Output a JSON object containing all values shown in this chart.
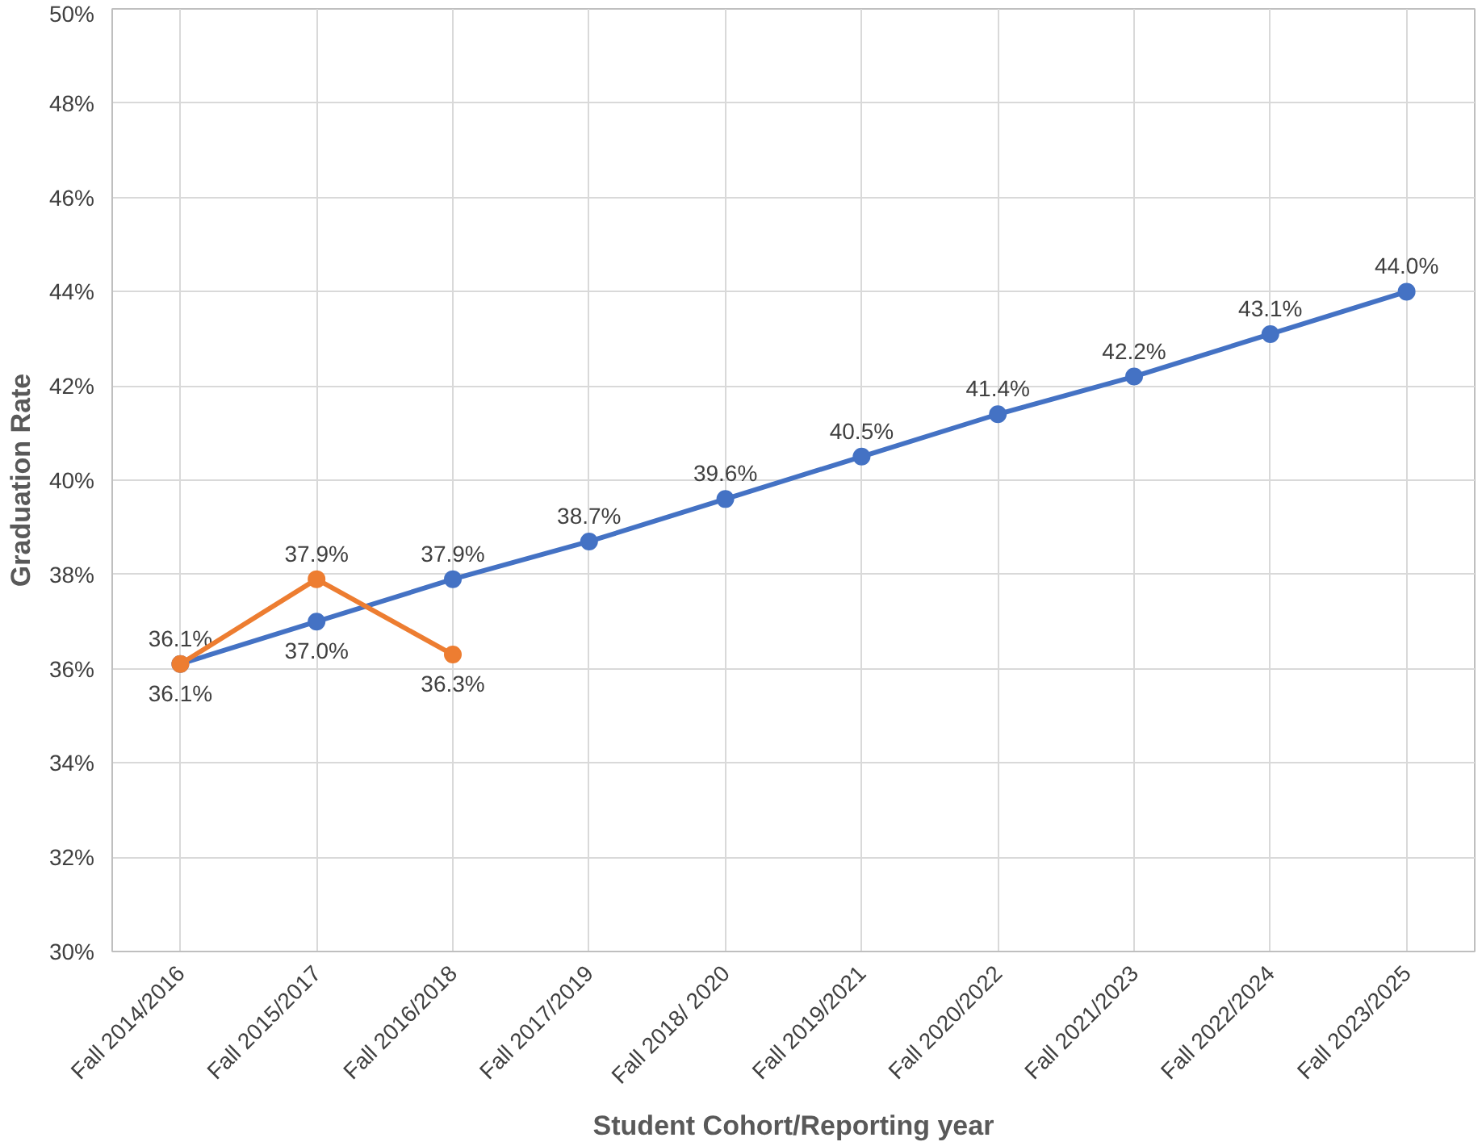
{
  "chart_data": {
    "type": "line",
    "xlabel": "Student Cohort/Reporting year",
    "ylabel": "Graduation Rate",
    "categories": [
      "Fall 2014/2016",
      "Fall 2015/2017",
      "Fall 2016/2018",
      "Fall 2017/2019",
      "Fall 2018/ 2020",
      "Fall 2019/2021",
      "Fall 2020/2022",
      "Fall 2021/2023",
      "Fall 2022/2024",
      "Fall 2023/2025"
    ],
    "series": [
      {
        "color": "#4472c4",
        "values": [
          36.1,
          37.0,
          37.9,
          38.7,
          39.6,
          40.5,
          41.4,
          42.2,
          43.1,
          44.0
        ],
        "value_labels": [
          "36.1%",
          "37.0%",
          "37.9%",
          "38.7%",
          "39.6%",
          "40.5%",
          "41.4%",
          "42.2%",
          "43.1%",
          "44.0%"
        ]
      },
      {
        "color": "#ed7d31",
        "values": [
          36.1,
          37.9,
          36.3,
          null,
          null,
          null,
          null,
          null,
          null,
          null
        ],
        "value_labels": [
          "36.1%",
          "37.9%",
          "36.3%",
          null,
          null,
          null,
          null,
          null,
          null,
          null
        ]
      }
    ],
    "ylim": [
      30,
      50
    ],
    "yticks": [
      {
        "value": 30,
        "label": "30%"
      },
      {
        "value": 32,
        "label": "32%"
      },
      {
        "value": 34,
        "label": "34%"
      },
      {
        "value": 36,
        "label": "36%"
      },
      {
        "value": 38,
        "label": "38%"
      },
      {
        "value": 40,
        "label": "40%"
      },
      {
        "value": 42,
        "label": "42%"
      },
      {
        "value": 44,
        "label": "44%"
      },
      {
        "value": 46,
        "label": "46%"
      },
      {
        "value": 48,
        "label": "48%"
      },
      {
        "value": 50,
        "label": "50%"
      }
    ],
    "grid": true,
    "marker": "circle",
    "line_style": "solid"
  }
}
